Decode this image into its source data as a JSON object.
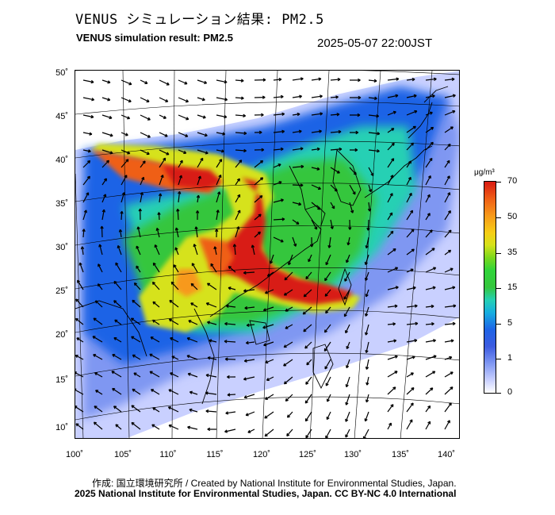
{
  "title_jp": "VENUS シミュレーション結果: PM2.5",
  "title_en": "VENUS simulation result: PM2.5",
  "timestamp": "2025-05-07 22:00JST",
  "lat_labels": [
    "50˚",
    "45˚",
    "40˚",
    "35˚",
    "30˚",
    "25˚",
    "20˚",
    "15˚",
    "10˚"
  ],
  "lon_labels": [
    "100˚",
    "105˚",
    "110˚",
    "115˚",
    "120˚",
    "125˚",
    "130˚",
    "135˚",
    "140˚"
  ],
  "colorbar": {
    "unit": "μg/m³",
    "labels": [
      "70",
      "50",
      "35",
      "15",
      "5",
      "1",
      "0"
    ],
    "colors": {
      "low": "#ffffff",
      "mid": "#35c63d",
      "high": "#d81a12"
    }
  },
  "credit_line1": "作成: 国立環境研究所 / Created by National Institute for Environmental Studies, Japan.",
  "credit_line2": "2025 National Institute for Environmental Studies, Japan. CC BY-NC 4.0 International"
}
